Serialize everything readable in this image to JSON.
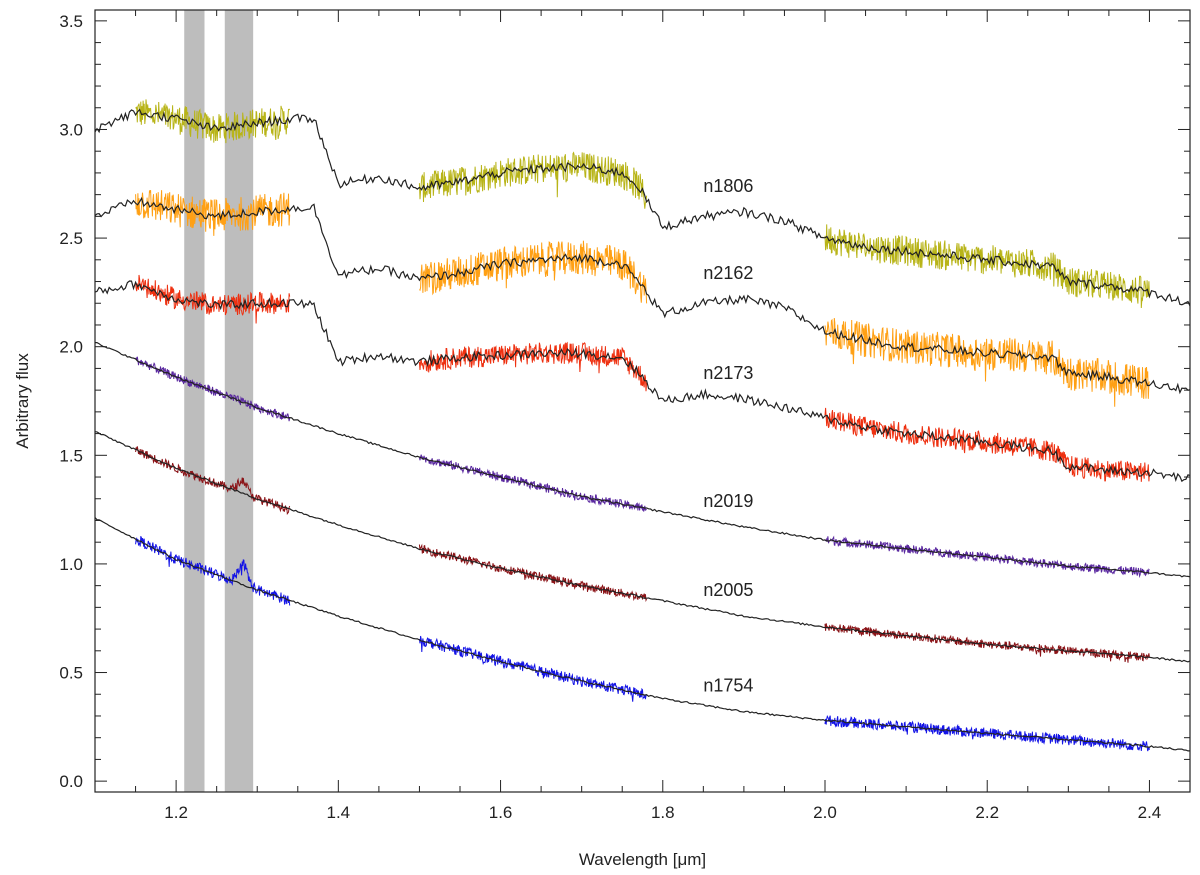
{
  "chart_data": {
    "type": "line",
    "xlabel": "Wavelength [μm]",
    "ylabel": "Arbitrary flux",
    "xlim": [
      1.1,
      2.45
    ],
    "ylim": [
      -0.05,
      3.55
    ],
    "xticks": [
      "1.2",
      "1.4",
      "1.6",
      "1.8",
      "2.0",
      "2.2",
      "2.4"
    ],
    "yticks": [
      "0.0",
      "0.5",
      "1.0",
      "1.5",
      "2.0",
      "2.5",
      "3.0",
      "3.5"
    ],
    "grid": false,
    "shaded_bands": [
      [
        1.21,
        1.235
      ],
      [
        1.26,
        1.295
      ]
    ],
    "observed_segments": [
      [
        1.15,
        1.34
      ],
      [
        1.5,
        1.78
      ],
      [
        2.0,
        2.4
      ]
    ],
    "series": [
      {
        "name": "n1806",
        "color": "#b8b418",
        "noise": 0.07,
        "model": [
          [
            1.1,
            3.0
          ],
          [
            1.15,
            3.08
          ],
          [
            1.2,
            3.05
          ],
          [
            1.25,
            3.0
          ],
          [
            1.3,
            3.03
          ],
          [
            1.35,
            3.05
          ],
          [
            1.37,
            3.05
          ],
          [
            1.4,
            2.75
          ],
          [
            1.45,
            2.78
          ],
          [
            1.5,
            2.73
          ],
          [
            1.55,
            2.76
          ],
          [
            1.6,
            2.8
          ],
          [
            1.65,
            2.82
          ],
          [
            1.7,
            2.83
          ],
          [
            1.75,
            2.8
          ],
          [
            1.77,
            2.74
          ],
          [
            1.8,
            2.55
          ],
          [
            1.85,
            2.6
          ],
          [
            1.9,
            2.62
          ],
          [
            1.95,
            2.58
          ],
          [
            2.0,
            2.5
          ],
          [
            2.05,
            2.46
          ],
          [
            2.1,
            2.44
          ],
          [
            2.2,
            2.4
          ],
          [
            2.28,
            2.37
          ],
          [
            2.3,
            2.3
          ],
          [
            2.35,
            2.28
          ],
          [
            2.4,
            2.25
          ],
          [
            2.45,
            2.2
          ]
        ]
      },
      {
        "name": "n2162",
        "color": "#ffa014",
        "noise": 0.08,
        "model": [
          [
            1.1,
            2.6
          ],
          [
            1.15,
            2.67
          ],
          [
            1.2,
            2.63
          ],
          [
            1.25,
            2.6
          ],
          [
            1.3,
            2.62
          ],
          [
            1.35,
            2.64
          ],
          [
            1.37,
            2.64
          ],
          [
            1.4,
            2.33
          ],
          [
            1.45,
            2.36
          ],
          [
            1.5,
            2.31
          ],
          [
            1.55,
            2.34
          ],
          [
            1.6,
            2.38
          ],
          [
            1.65,
            2.4
          ],
          [
            1.7,
            2.41
          ],
          [
            1.75,
            2.38
          ],
          [
            1.77,
            2.3
          ],
          [
            1.8,
            2.15
          ],
          [
            1.85,
            2.2
          ],
          [
            1.9,
            2.22
          ],
          [
            1.95,
            2.18
          ],
          [
            2.0,
            2.07
          ],
          [
            2.05,
            2.03
          ],
          [
            2.1,
            2.0
          ],
          [
            2.2,
            1.97
          ],
          [
            2.28,
            1.95
          ],
          [
            2.3,
            1.88
          ],
          [
            2.35,
            1.86
          ],
          [
            2.4,
            1.83
          ],
          [
            2.45,
            1.8
          ]
        ]
      },
      {
        "name": "n2173",
        "color": "#ee3010",
        "noise": 0.05,
        "model": [
          [
            1.1,
            2.25
          ],
          [
            1.15,
            2.29
          ],
          [
            1.2,
            2.22
          ],
          [
            1.25,
            2.19
          ],
          [
            1.3,
            2.2
          ],
          [
            1.35,
            2.2
          ],
          [
            1.37,
            2.19
          ],
          [
            1.4,
            1.93
          ],
          [
            1.45,
            1.96
          ],
          [
            1.5,
            1.93
          ],
          [
            1.55,
            1.95
          ],
          [
            1.6,
            1.96
          ],
          [
            1.65,
            1.97
          ],
          [
            1.7,
            1.97
          ],
          [
            1.75,
            1.95
          ],
          [
            1.77,
            1.88
          ],
          [
            1.8,
            1.75
          ],
          [
            1.85,
            1.78
          ],
          [
            1.9,
            1.76
          ],
          [
            1.95,
            1.72
          ],
          [
            2.0,
            1.67
          ],
          [
            2.05,
            1.63
          ],
          [
            2.1,
            1.6
          ],
          [
            2.2,
            1.56
          ],
          [
            2.28,
            1.52
          ],
          [
            2.3,
            1.45
          ],
          [
            2.35,
            1.43
          ],
          [
            2.4,
            1.42
          ],
          [
            2.45,
            1.39
          ]
        ]
      },
      {
        "name": "n2019",
        "color": "#5a28a0",
        "noise": 0.02,
        "model": [
          [
            1.1,
            2.02
          ],
          [
            1.2,
            1.86
          ],
          [
            1.3,
            1.72
          ],
          [
            1.4,
            1.6
          ],
          [
            1.5,
            1.49
          ],
          [
            1.6,
            1.4
          ],
          [
            1.7,
            1.31
          ],
          [
            1.8,
            1.24
          ],
          [
            1.9,
            1.17
          ],
          [
            2.0,
            1.11
          ],
          [
            2.1,
            1.07
          ],
          [
            2.2,
            1.03
          ],
          [
            2.3,
            0.99
          ],
          [
            2.4,
            0.96
          ],
          [
            2.45,
            0.94
          ]
        ]
      },
      {
        "name": "n2005",
        "color": "#8b1418",
        "noise": 0.02,
        "model": [
          [
            1.1,
            1.61
          ],
          [
            1.2,
            1.44
          ],
          [
            1.3,
            1.3
          ],
          [
            1.4,
            1.18
          ],
          [
            1.5,
            1.07
          ],
          [
            1.6,
            0.98
          ],
          [
            1.7,
            0.9
          ],
          [
            1.8,
            0.83
          ],
          [
            1.9,
            0.76
          ],
          [
            2.0,
            0.71
          ],
          [
            2.1,
            0.67
          ],
          [
            2.2,
            0.63
          ],
          [
            2.3,
            0.6
          ],
          [
            2.4,
            0.57
          ],
          [
            2.45,
            0.55
          ]
        ]
      },
      {
        "name": "n1754",
        "color": "#1414e6",
        "noise": 0.025,
        "model": [
          [
            1.1,
            1.21
          ],
          [
            1.2,
            1.02
          ],
          [
            1.3,
            0.88
          ],
          [
            1.4,
            0.76
          ],
          [
            1.5,
            0.65
          ],
          [
            1.6,
            0.55
          ],
          [
            1.7,
            0.46
          ],
          [
            1.8,
            0.38
          ],
          [
            1.9,
            0.32
          ],
          [
            2.0,
            0.28
          ],
          [
            2.1,
            0.25
          ],
          [
            2.2,
            0.22
          ],
          [
            2.3,
            0.19
          ],
          [
            2.4,
            0.16
          ],
          [
            2.45,
            0.14
          ]
        ]
      }
    ],
    "emission_bumps": [
      {
        "series": "n1754",
        "x": 1.282,
        "amp": 0.1,
        "width": 0.008
      },
      {
        "series": "n2005",
        "x": 1.282,
        "amp": 0.06,
        "width": 0.008
      }
    ]
  }
}
